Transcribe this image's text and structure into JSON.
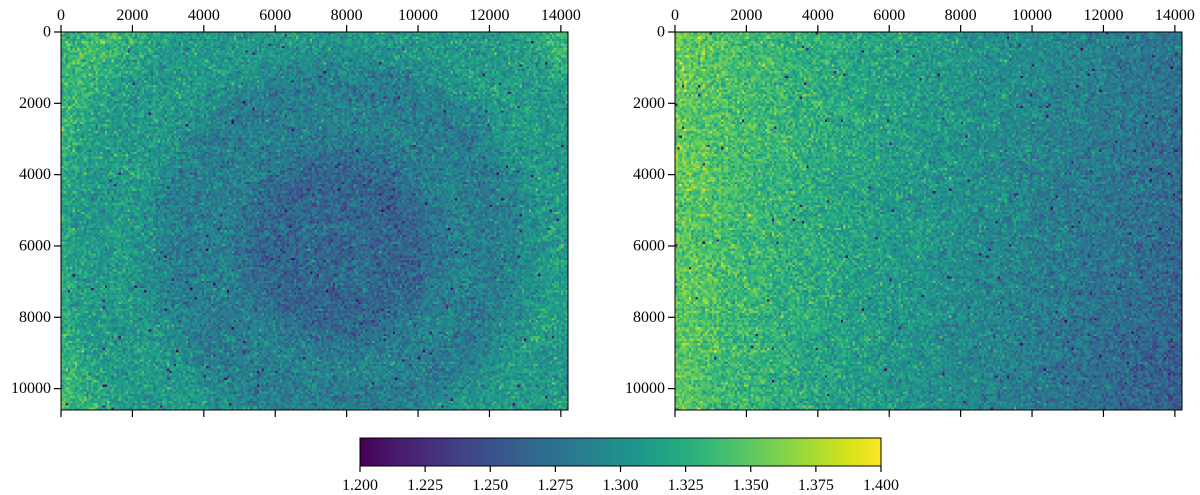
{
  "chart_data": [
    {
      "type": "heatmap",
      "title": "",
      "xlabel": "",
      "ylabel": "",
      "xlim": [
        0,
        14200
      ],
      "ylim": [
        0,
        10600
      ],
      "y_inverted": true,
      "x_ticks": [
        "0",
        "2000",
        "4000",
        "6000",
        "8000",
        "10000",
        "12000",
        "14000"
      ],
      "y_ticks": [
        "0",
        "2000",
        "4000",
        "6000",
        "8000",
        "10000"
      ],
      "x_tick_position": "top",
      "pattern": "concentric-rings",
      "center_xy": [
        7800,
        6000
      ],
      "value_at_center": 1.26,
      "value_at_edges": 1.33,
      "noise_level": "high"
    },
    {
      "type": "heatmap",
      "title": "",
      "xlabel": "",
      "ylabel": "",
      "xlim": [
        0,
        14200
      ],
      "ylim": [
        0,
        10600
      ],
      "y_inverted": true,
      "x_ticks": [
        "0",
        "2000",
        "4000",
        "6000",
        "8000",
        "10000",
        "12000",
        "14000"
      ],
      "y_ticks": [
        "0",
        "2000",
        "4000",
        "6000",
        "8000",
        "10000"
      ],
      "x_tick_position": "top",
      "pattern": "left-to-right-gradient",
      "value_at_left": 1.35,
      "value_at_right": 1.27,
      "noise_level": "high"
    }
  ],
  "colorbar": {
    "colormap": "viridis",
    "range": [
      1.2,
      1.4
    ],
    "ticks": [
      "1.200",
      "1.225",
      "1.250",
      "1.275",
      "1.300",
      "1.325",
      "1.350",
      "1.375",
      "1.400"
    ],
    "orientation": "horizontal",
    "placement": "bottom-center"
  },
  "colors": {
    "viridis_low": "#440154",
    "viridis_mid": "#21918c",
    "viridis_high": "#fde725"
  }
}
